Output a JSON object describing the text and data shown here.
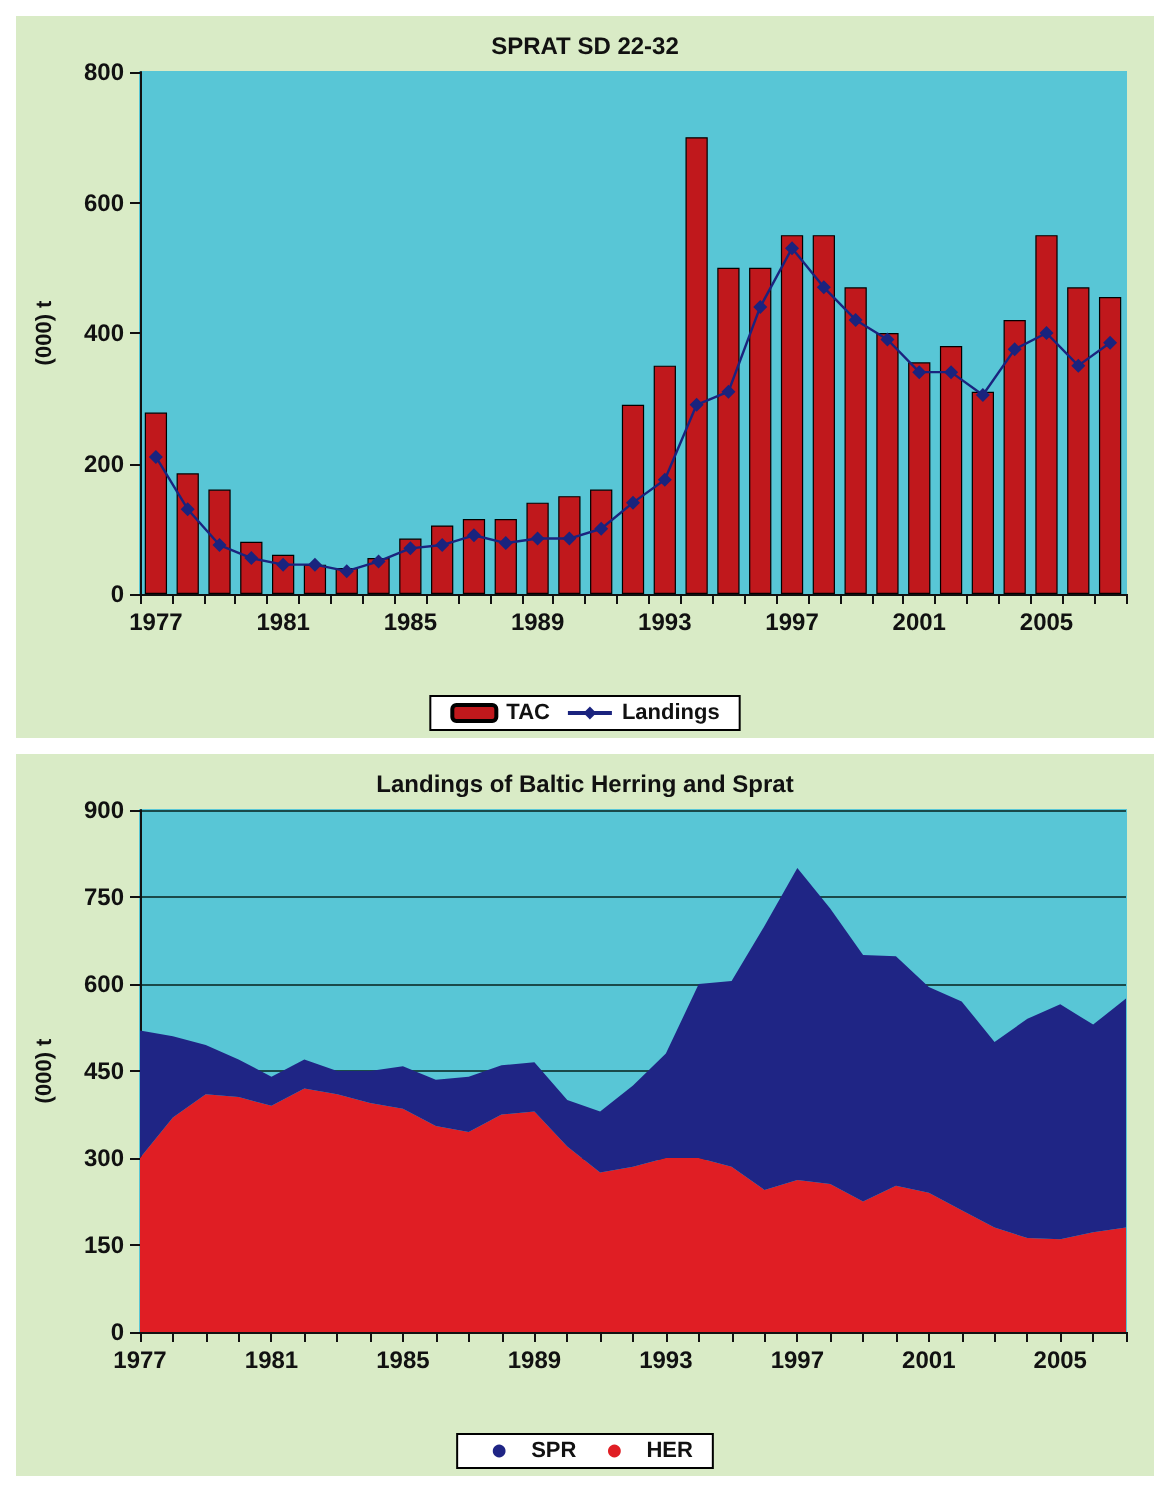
{
  "chart_data": [
    {
      "type": "bar",
      "title": "SPRAT SD 22-32",
      "ylabel": "(000) t",
      "categories": [
        "1977",
        null,
        null,
        null,
        "1981",
        null,
        null,
        null,
        "1985",
        null,
        null,
        null,
        "1989",
        null,
        null,
        null,
        "1993",
        null,
        null,
        null,
        "1997",
        null,
        null,
        null,
        "2001",
        null,
        null,
        null,
        "2005",
        null,
        null
      ],
      "series": [
        {
          "name": "TAC",
          "type": "bar",
          "color": "#c0181c",
          "values": [
            278,
            185,
            160,
            80,
            60,
            45,
            40,
            55,
            85,
            105,
            115,
            115,
            140,
            150,
            160,
            290,
            350,
            700,
            500,
            500,
            550,
            550,
            470,
            400,
            355,
            380,
            310,
            420,
            550,
            470,
            455
          ]
        },
        {
          "name": "Landings",
          "type": "line",
          "color": "#1a237e",
          "marker": "diamond",
          "values": [
            210,
            130,
            75,
            55,
            45,
            45,
            35,
            50,
            70,
            75,
            90,
            78,
            85,
            85,
            100,
            140,
            175,
            290,
            310,
            440,
            530,
            470,
            420,
            390,
            340,
            340,
            305,
            375,
            400,
            350,
            385
          ]
        }
      ],
      "ylim": [
        0,
        800
      ],
      "yticks": [
        0,
        200,
        400,
        600,
        800
      ],
      "grid": false,
      "legend": "bottom"
    },
    {
      "type": "area",
      "title": "Landings of Baltic Herring and Sprat",
      "ylabel": "(000) t",
      "stacked": true,
      "categories": [
        "1977",
        null,
        null,
        null,
        "1981",
        null,
        null,
        null,
        "1985",
        null,
        null,
        null,
        "1989",
        null,
        null,
        null,
        "1993",
        null,
        null,
        null,
        "1997",
        null,
        null,
        null,
        "2001",
        null,
        null,
        null,
        "2005",
        null,
        null
      ],
      "series": [
        {
          "name": "HER",
          "color": "#e01e24",
          "values": [
            300,
            370,
            410,
            405,
            390,
            420,
            410,
            395,
            385,
            355,
            345,
            375,
            380,
            320,
            275,
            285,
            300,
            300,
            285,
            245,
            262,
            255,
            225,
            252,
            240,
            210,
            180,
            162,
            160,
            172,
            180
          ]
        },
        {
          "name": "SPR",
          "color": "#1f2585",
          "values": [
            220,
            140,
            85,
            65,
            50,
            50,
            40,
            55,
            73,
            80,
            95,
            85,
            85,
            80,
            105,
            140,
            180,
            300,
            320,
            455,
            538,
            475,
            425,
            396,
            355,
            360,
            320,
            378,
            405,
            358,
            395
          ]
        }
      ],
      "ylim": [
        0,
        900
      ],
      "yticks": [
        0,
        150,
        300,
        450,
        600,
        750,
        900
      ],
      "grid": "y",
      "legend": "bottom"
    }
  ]
}
